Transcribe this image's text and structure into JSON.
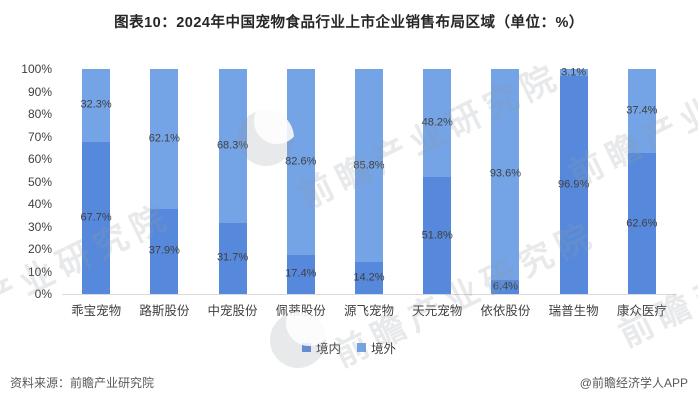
{
  "title": "图表10：2024年中国宠物食品行业上市企业销售布局区域（单位：%）",
  "chart_data": {
    "type": "bar",
    "stacked": true,
    "title": "2024年中国宠物食品行业上市企业销售布局区域",
    "unit": "%",
    "categories": [
      "乖宝宠物",
      "路斯股份",
      "中宠股份",
      "佩蒂股份",
      "源飞宠物",
      "天元宠物",
      "依依股份",
      "瑞普生物",
      "康众医疗"
    ],
    "series": [
      {
        "name": "境内",
        "color": "#5689DB",
        "values": [
          67.7,
          37.9,
          31.7,
          17.4,
          14.2,
          51.8,
          6.4,
          96.9,
          62.6
        ]
      },
      {
        "name": "境外",
        "color": "#74A3E6",
        "values": [
          32.3,
          62.1,
          68.3,
          82.6,
          85.8,
          48.2,
          93.6,
          3.1,
          37.4
        ]
      }
    ],
    "ylim": [
      0,
      100
    ],
    "y_ticks": [
      "100%",
      "90%",
      "80%",
      "70%",
      "60%",
      "50%",
      "40%",
      "30%",
      "20%",
      "10%",
      "0%"
    ],
    "grid": false,
    "legend_position": "bottom",
    "value_label_format": "one-decimal-percent"
  },
  "footer": {
    "source": "资料来源：前瞻产业研究院",
    "credit": "@前瞻经济学人APP"
  },
  "watermark": {
    "text": "前瞻产业研究院"
  },
  "colors": {
    "domestic_bar": "#5689DB",
    "overseas_bar": "#74A3E6",
    "axis_line": "#D9D9D9",
    "tick_text": "#404040",
    "data_label_text": "#3F3F3F",
    "footer_text": "#595959"
  }
}
